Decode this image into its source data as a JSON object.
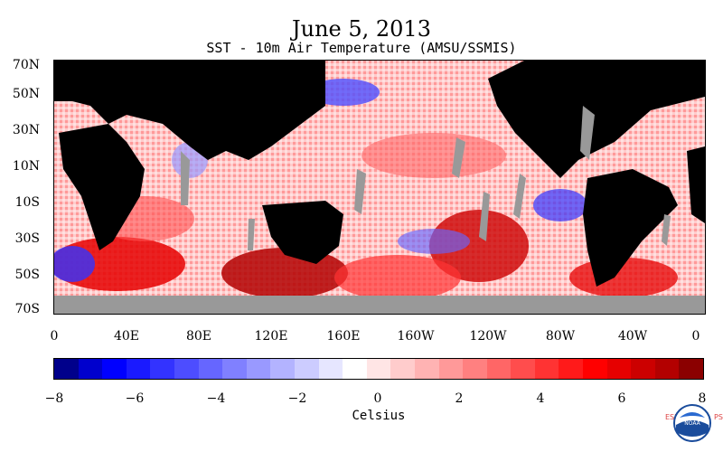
{
  "header": {
    "title": "June 5, 2013",
    "subtitle": "SST - 10m Air Temperature (AMSU/SSMIS)"
  },
  "map": {
    "latitude_labels": [
      "70N",
      "50N",
      "30N",
      "10N",
      "10S",
      "30S",
      "50S",
      "70S"
    ],
    "longitude_labels": [
      "0",
      "40E",
      "80E",
      "120E",
      "160E",
      "160W",
      "120W",
      "80W",
      "40W",
      "0"
    ]
  },
  "colorbar": {
    "ticks": [
      "−8",
      "−6",
      "−4",
      "−2",
      "0",
      "2",
      "4",
      "6",
      "8"
    ],
    "title": "Celsius",
    "colors": [
      "#00008b",
      "#0000cd",
      "#0000ff",
      "#1a1aff",
      "#3333ff",
      "#4d4dff",
      "#6666ff",
      "#8080ff",
      "#9999ff",
      "#b3b3ff",
      "#ccccff",
      "#e6e6ff",
      "#ffffff",
      "#ffe5e5",
      "#ffcccc",
      "#ffb3b3",
      "#ff9999",
      "#ff8080",
      "#ff6666",
      "#ff4d4d",
      "#ff3333",
      "#ff1a1a",
      "#ff0000",
      "#e60000",
      "#cc0000",
      "#b30000",
      "#8b0000"
    ]
  },
  "logo": {
    "left_text": "ESRL",
    "right_text": "PSD",
    "center_text": "NOAA"
  }
}
